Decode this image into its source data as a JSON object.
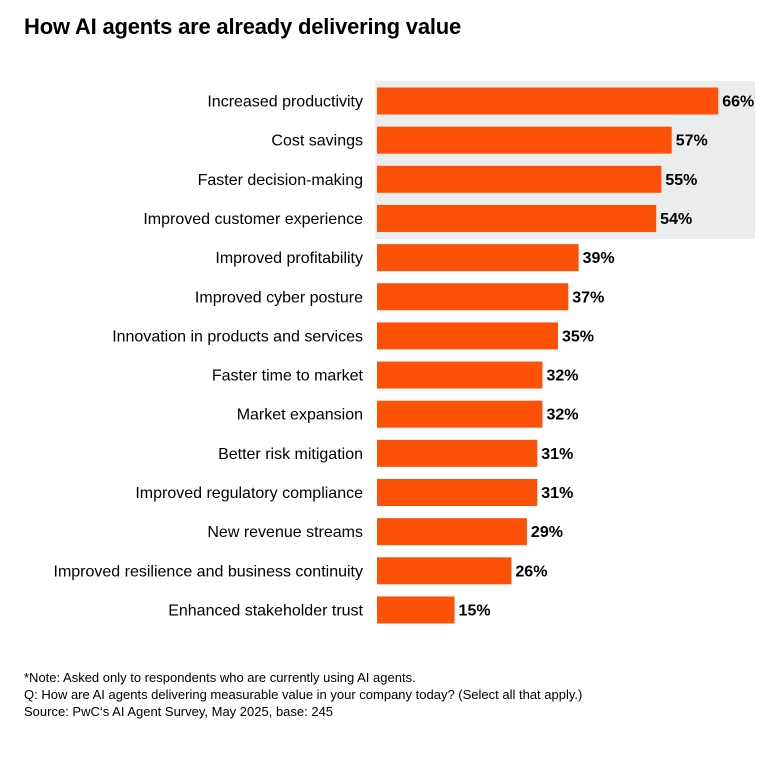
{
  "title": "How AI agents are already delivering value",
  "chart_data": {
    "type": "bar",
    "orientation": "horizontal",
    "categories": [
      "Increased productivity",
      "Cost savings",
      "Faster decision-making",
      "Improved customer experience",
      "Improved profitability",
      "Improved cyber posture",
      "Innovation in products and services",
      "Faster time to market",
      "Market expansion",
      "Better risk mitigation",
      "Improved regulatory compliance",
      "New revenue streams",
      "Improved resilience and business continuity",
      "Enhanced stakeholder trust"
    ],
    "values": [
      66,
      57,
      55,
      54,
      39,
      37,
      35,
      32,
      32,
      31,
      31,
      29,
      26,
      15
    ],
    "value_labels": [
      "66%",
      "57%",
      "55%",
      "54%",
      "39%",
      "37%",
      "35%",
      "32%",
      "32%",
      "31%",
      "31%",
      "29%",
      "26%",
      "15%"
    ],
    "highlighted_count": 4,
    "unit": "%",
    "bar_color": "#FD5108",
    "highlight_background": "#EBECEE",
    "grid": false,
    "legend": "none"
  },
  "footnotes": {
    "note": "*Note: Asked only to respondents who are currently using AI agents.",
    "question": "Q: How are AI agents delivering measurable value in your company today? (Select all that apply.)",
    "source": "Source: PwC‘s AI Agent Survey, May 2025, base: 245"
  }
}
